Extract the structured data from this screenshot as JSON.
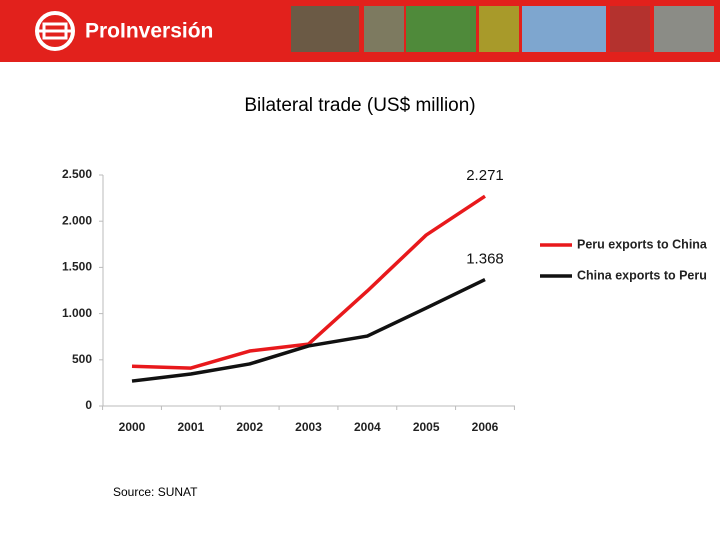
{
  "header": {
    "logo": "ProInversión"
  },
  "chart_data": {
    "type": "line",
    "title": "Bilateral trade (US$ million)",
    "source": "Source: SUNAT",
    "categories": [
      "2000",
      "2001",
      "2002",
      "2003",
      "2004",
      "2005",
      "2006"
    ],
    "series": [
      {
        "name": "Peru exports to China",
        "color": "#e8191c",
        "values": [
          430,
          410,
          595,
          670,
          1245,
          1850,
          2271
        ],
        "value_labels": [
          null,
          null,
          null,
          null,
          null,
          null,
          "2.271"
        ]
      },
      {
        "name": "China exports to Peru",
        "color": "#111111",
        "values": [
          270,
          346,
          455,
          650,
          757,
          1060,
          1368
        ],
        "value_labels": [
          null,
          null,
          null,
          null,
          null,
          null,
          "1.368"
        ]
      }
    ],
    "ylim": [
      0,
      2500
    ],
    "yticks": [
      0,
      500,
      {
        "value": 1000,
        "label": "1.000"
      },
      {
        "value": 1500,
        "label": "1.500"
      },
      {
        "value": 2000,
        "label": "2.000"
      },
      {
        "value": 2500,
        "label": "2.500"
      }
    ],
    "legend": "right",
    "grid": false
  }
}
